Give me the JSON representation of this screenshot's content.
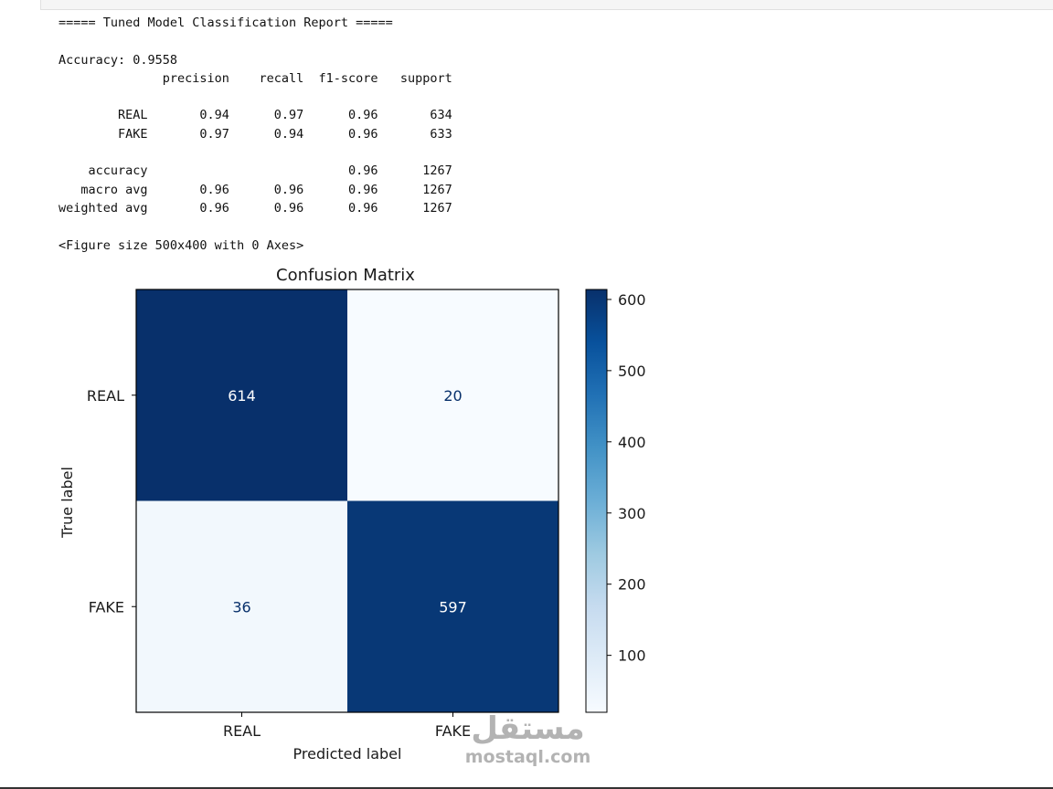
{
  "report": {
    "lines": [
      "===== Tuned Model Classification Report =====",
      "",
      "Accuracy: 0.9558",
      "              precision    recall  f1-score   support",
      "",
      "        REAL       0.94      0.97      0.96       634",
      "        FAKE       0.97      0.94      0.96       633",
      "",
      "    accuracy                           0.96      1267",
      "   macro avg       0.96      0.96      0.96      1267",
      "weighted avg       0.96      0.96      0.96      1267",
      "",
      "<Figure size 500x400 with 0 Axes>"
    ]
  },
  "chart_data": {
    "type": "heatmap",
    "title": "Confusion Matrix",
    "xlabel": "Predicted label",
    "ylabel": "True label",
    "x_categories": [
      "REAL",
      "FAKE"
    ],
    "y_categories": [
      "REAL",
      "FAKE"
    ],
    "values": [
      [
        614,
        20
      ],
      [
        36,
        597
      ]
    ],
    "colormap": "Blues",
    "colorbar": {
      "min": 20,
      "max": 614,
      "ticks": [
        100,
        200,
        300,
        400,
        500,
        600
      ]
    },
    "colors": {
      "low": "#f7fbff",
      "high": "#08306b",
      "text_dark_cell": "#ffffff",
      "text_light_cell": "#08306b"
    }
  },
  "watermark": {
    "arabic": "مستقل",
    "latin": "mostaql.com"
  }
}
